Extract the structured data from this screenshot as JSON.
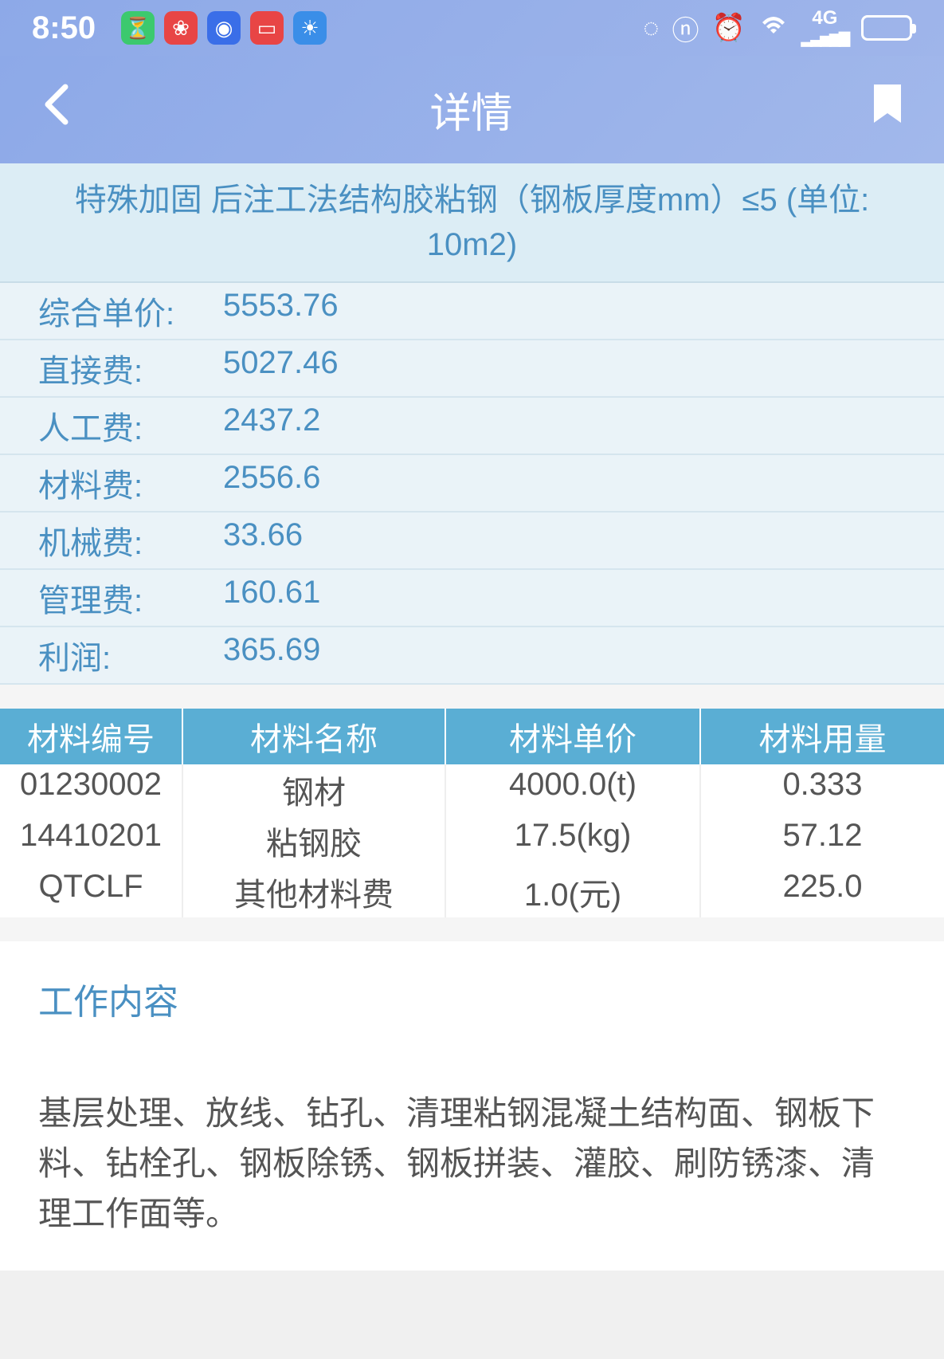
{
  "status": {
    "time": "8:50",
    "app_icons": [
      {
        "bg": "#3cc96e",
        "glyph": "⏳"
      },
      {
        "bg": "#e84545",
        "glyph": "❀"
      },
      {
        "bg": "#3a6ee8",
        "glyph": "◉"
      },
      {
        "bg": "#e84545",
        "glyph": "▭"
      },
      {
        "bg": "#3a8ee8",
        "glyph": "☀"
      }
    ],
    "network_label": "4G"
  },
  "header": {
    "title": "详情"
  },
  "detail": {
    "title": "特殊加固 后注工法结构胶粘钢（钢板厚度mm）≤5 (单位: 10m2)",
    "rows": [
      {
        "label": "综合单价:",
        "value": "5553.76"
      },
      {
        "label": "直接费:",
        "value": "5027.46"
      },
      {
        "label": "人工费:",
        "value": "2437.2"
      },
      {
        "label": "材料费:",
        "value": "2556.6"
      },
      {
        "label": "机械费:",
        "value": "33.66"
      },
      {
        "label": "管理费:",
        "value": "160.61"
      },
      {
        "label": "利润:",
        "value": "365.69"
      }
    ]
  },
  "materials": {
    "headers": [
      "材料编号",
      "材料名称",
      "材料单价",
      "材料用量"
    ],
    "rows": [
      {
        "id": "01230002",
        "name": "钢材",
        "price": "4000.0(t)",
        "qty": "0.333"
      },
      {
        "id": "14410201",
        "name": "粘钢胶",
        "price": "17.5(kg)",
        "qty": "57.12"
      },
      {
        "id": "QTCLF",
        "name": "其他材料费",
        "price": "1.0(元)",
        "qty": "225.0"
      }
    ]
  },
  "work_content": {
    "title": "工作内容",
    "text": "基层处理、放线、钻孔、清理粘钢混凝土结构面、钢板下料、钻栓孔、钢板除锈、钢板拼装、灌胶、刷防锈漆、清理工作面等。"
  }
}
